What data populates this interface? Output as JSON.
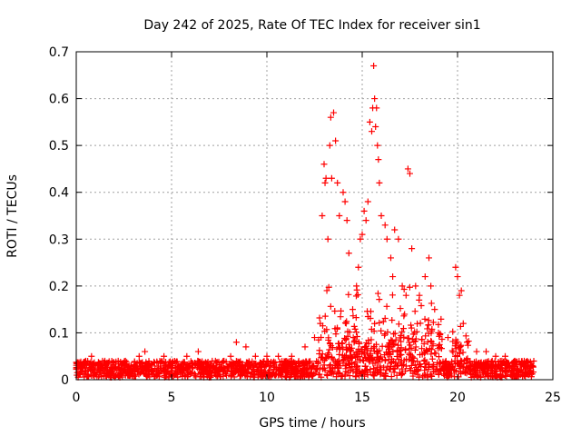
{
  "chart_data": {
    "type": "scatter",
    "title": "Day 242 of 2025, Rate Of TEC Index for receiver sin1",
    "xlabel": "GPS time / hours",
    "ylabel": "ROTI / TECUs",
    "xlim": [
      0,
      25
    ],
    "ylim": [
      0,
      0.7
    ],
    "x_ticks": [
      "0",
      "5",
      "10",
      "15",
      "20",
      "25"
    ],
    "y_ticks": [
      "0",
      "0.1",
      "0.2",
      "0.3",
      "0.4",
      "0.5",
      "0.6",
      "0.7"
    ],
    "grid": true,
    "marker": "plus",
    "series": [
      {
        "color": "#ff0000",
        "x": [
          0.2,
          0.5,
          0.8,
          1.5,
          2.2,
          3.3,
          3.6,
          4.6,
          5.8,
          6.4,
          7.3,
          8.1,
          8.4,
          8.9,
          9.4,
          10.0,
          10.6,
          11.3,
          12.0,
          12.5,
          12.8,
          12.9,
          13.0,
          13.05,
          13.1,
          13.2,
          13.3,
          13.35,
          13.4,
          13.5,
          13.6,
          13.7,
          13.8,
          14.0,
          14.1,
          14.2,
          14.3,
          14.5,
          14.7,
          14.8,
          14.9,
          15.0,
          15.1,
          15.2,
          15.3,
          15.4,
          15.5,
          15.55,
          15.6,
          15.65,
          15.7,
          15.75,
          15.8,
          15.85,
          15.9,
          16.0,
          16.2,
          16.3,
          16.5,
          16.6,
          16.7,
          16.9,
          17.1,
          17.3,
          17.4,
          17.5,
          17.6,
          17.8,
          18.0,
          18.3,
          18.5,
          18.6,
          18.8,
          19.0,
          19.5,
          19.9,
          20.0,
          20.1,
          20.2,
          20.3,
          20.5,
          21.0,
          21.5,
          22.0,
          22.5,
          23.0,
          23.5,
          23.9
        ],
        "y": [
          0.03,
          0.04,
          0.05,
          0.04,
          0.04,
          0.05,
          0.06,
          0.05,
          0.05,
          0.06,
          0.04,
          0.05,
          0.08,
          0.07,
          0.05,
          0.05,
          0.05,
          0.05,
          0.07,
          0.09,
          0.12,
          0.35,
          0.46,
          0.42,
          0.43,
          0.3,
          0.5,
          0.56,
          0.43,
          0.57,
          0.51,
          0.42,
          0.35,
          0.4,
          0.38,
          0.34,
          0.27,
          0.15,
          0.2,
          0.24,
          0.3,
          0.31,
          0.36,
          0.34,
          0.38,
          0.55,
          0.53,
          0.58,
          0.67,
          0.6,
          0.54,
          0.58,
          0.5,
          0.47,
          0.42,
          0.35,
          0.33,
          0.3,
          0.26,
          0.22,
          0.32,
          0.3,
          0.2,
          0.18,
          0.45,
          0.44,
          0.28,
          0.2,
          0.18,
          0.22,
          0.26,
          0.2,
          0.15,
          0.1,
          0.09,
          0.24,
          0.22,
          0.18,
          0.19,
          0.12,
          0.08,
          0.06,
          0.06,
          0.05,
          0.05,
          0.04,
          0.04,
          0.03
        ]
      }
    ]
  }
}
